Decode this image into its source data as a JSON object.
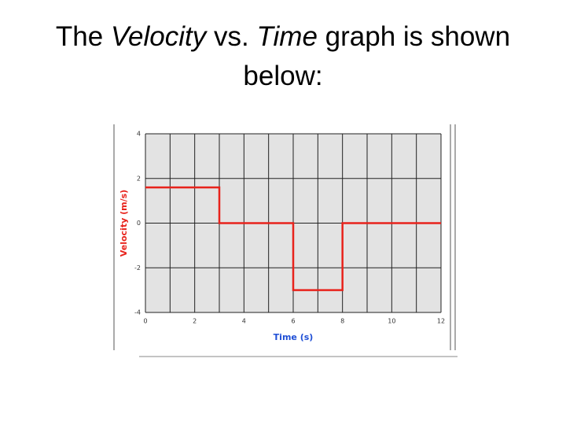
{
  "title_parts": [
    "The",
    "Velocity",
    "vs.",
    "Time",
    "graph is shown",
    "below:"
  ],
  "chart_data": {
    "type": "line",
    "x": [
      0,
      3,
      3,
      6,
      6,
      8,
      8,
      12
    ],
    "series": [
      {
        "color": "#e8231c",
        "values": [
          1.6,
          1.6,
          0,
          0,
          -3,
          -3,
          0,
          0
        ]
      }
    ],
    "xlabel": "Time (s)",
    "ylabel": "Velocity (m/s)",
    "xlim": [
      0,
      12
    ],
    "ylim": [
      -4,
      4
    ],
    "xticks": [
      0,
      2,
      4,
      6,
      8,
      10,
      12
    ],
    "xminorticks": [
      1,
      3,
      5,
      7,
      9,
      11
    ],
    "yticks": [
      -4,
      -2,
      0,
      2,
      4
    ],
    "grid": true
  }
}
